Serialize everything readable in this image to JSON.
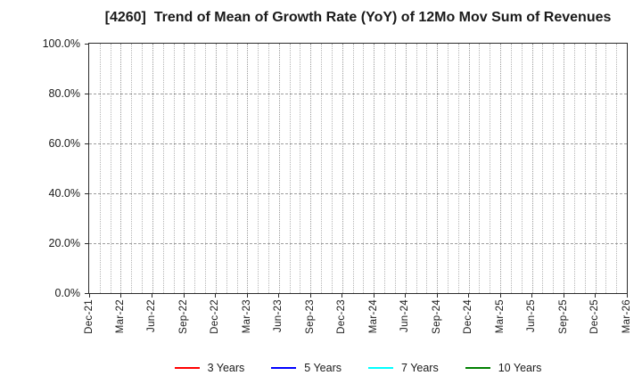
{
  "header": {
    "title": "[4260]  Trend of Mean of Growth Rate (YoY) of 12Mo Mov Sum of Revenues"
  },
  "chart_data": {
    "type": "line",
    "title": "[4260]  Trend of Mean of Growth Rate (YoY) of 12Mo Mov Sum of Revenues",
    "xlabel": "",
    "ylabel": "",
    "ylim": [
      0,
      100
    ],
    "y_ticks": [
      0,
      20,
      40,
      60,
      80,
      100
    ],
    "y_tick_labels": [
      "0.0%",
      "20.0%",
      "40.0%",
      "60.0%",
      "80.0%",
      "100.0%"
    ],
    "x_tick_labels": [
      "Dec-21",
      "Mar-22",
      "Jun-22",
      "Sep-22",
      "Dec-22",
      "Mar-23",
      "Jun-23",
      "Sep-23",
      "Dec-23",
      "Mar-24",
      "Jun-24",
      "Sep-24",
      "Dec-24",
      "Mar-25",
      "Jun-25",
      "Sep-25",
      "Dec-25",
      "Mar-26"
    ],
    "x_tick_interval_months": 3,
    "months_total": 51,
    "grid": true,
    "legend_position": "bottom",
    "series": [
      {
        "name": "3 Years",
        "color": "#ff0000",
        "x": [],
        "values": []
      },
      {
        "name": "5 Years",
        "color": "#0000ff",
        "x": [],
        "values": []
      },
      {
        "name": "7 Years",
        "color": "#00ffff",
        "x": [],
        "values": []
      },
      {
        "name": "10 Years",
        "color": "#008000",
        "x": [],
        "values": []
      }
    ],
    "colors": {
      "frame": "#2b2b2b",
      "hgrid": "#9e9e9e",
      "vgrid": "#b5b5b5",
      "text": "#1a1a1a",
      "background": "#ffffff"
    }
  }
}
